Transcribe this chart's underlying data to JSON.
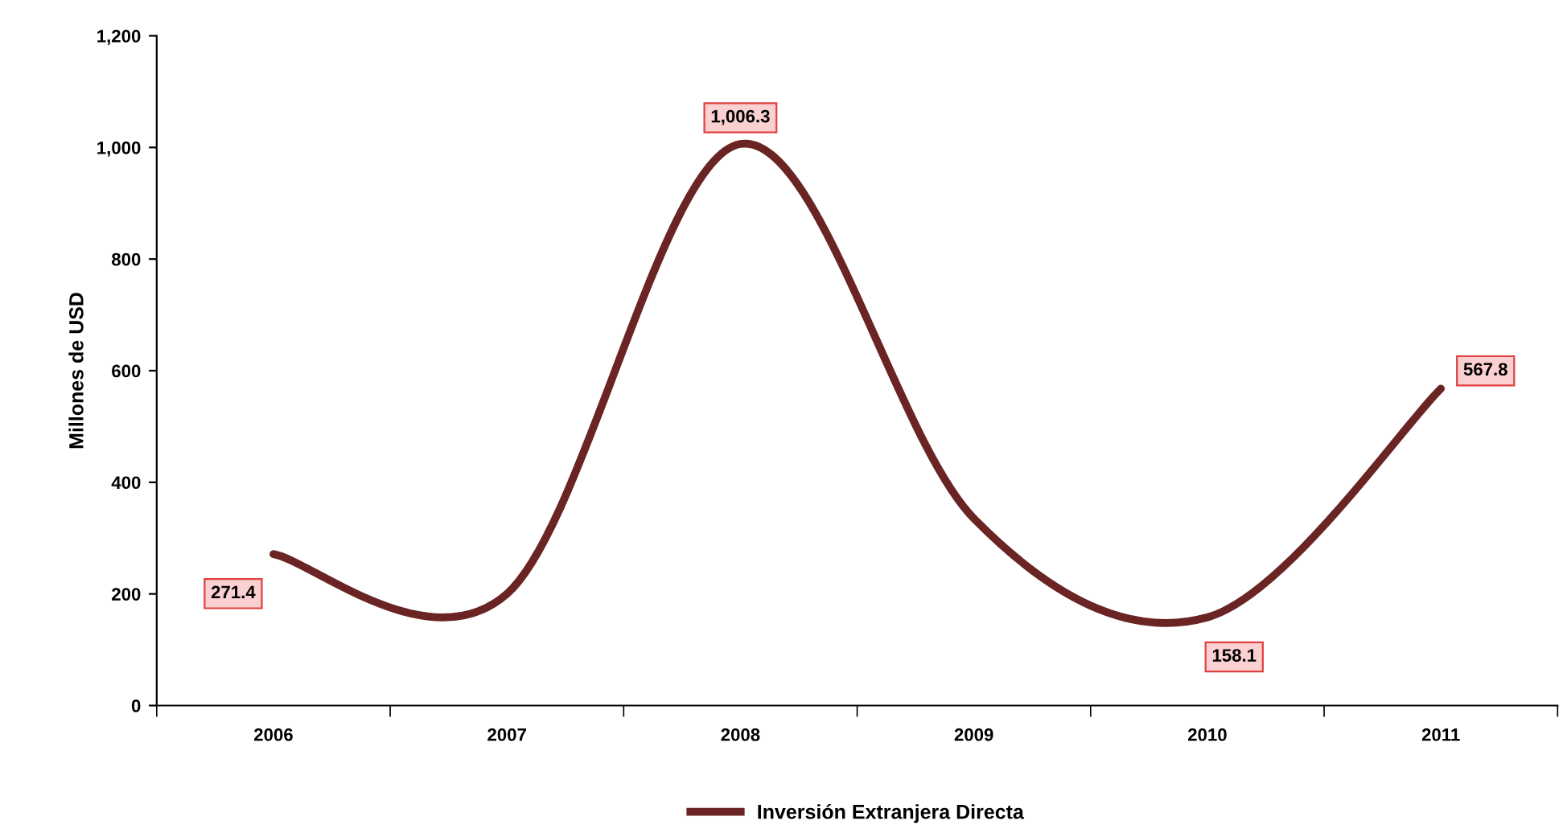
{
  "chart_data": {
    "type": "line",
    "ylabel": "Millones de USD",
    "categories": [
      "2006",
      "2007",
      "2008",
      "2009",
      "2010",
      "2011"
    ],
    "series": [
      {
        "name": "Inversión Extranjera Directa",
        "color": "#6b2424",
        "values": [
          271.4,
          200,
          1006.3,
          335,
          158.1,
          567.8
        ],
        "value_labels": [
          "271.4",
          null,
          "1,006.3",
          null,
          "158.1",
          "567.8"
        ]
      }
    ],
    "ylim": [
      0,
      1200
    ],
    "yticks": [
      {
        "value": 0,
        "label": "0"
      },
      {
        "value": 200,
        "label": "200"
      },
      {
        "value": 400,
        "label": "400"
      },
      {
        "value": 600,
        "label": "600"
      },
      {
        "value": 800,
        "label": "800"
      },
      {
        "value": 1000,
        "label": "1,000"
      },
      {
        "value": 1200,
        "label": "1,200"
      }
    ],
    "grid": false,
    "legend": "bottom",
    "marker": "none",
    "line_style": "solid"
  }
}
